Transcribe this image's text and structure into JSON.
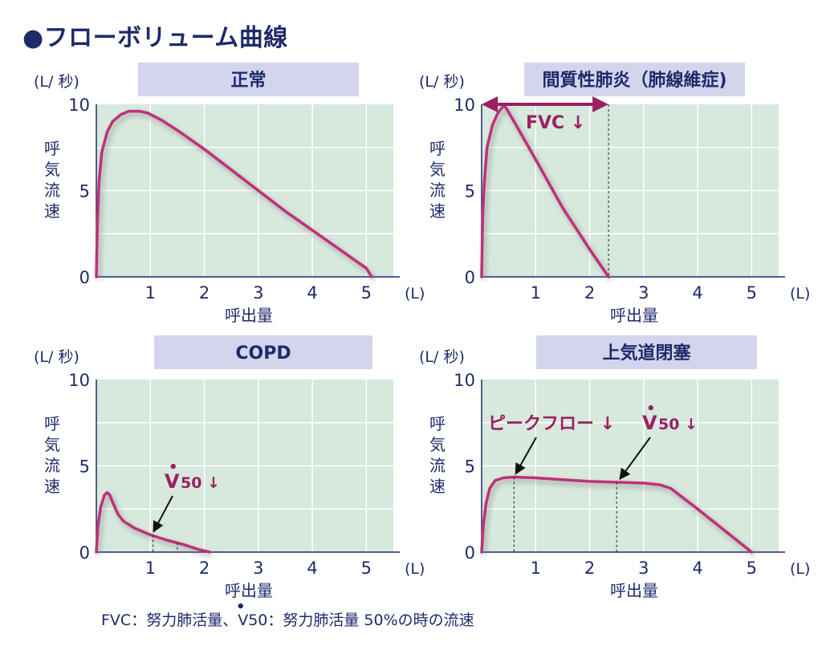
{
  "title": "●フローボリューム曲線",
  "footnote": "FVC：努力肺活量、V50：努力肺活量 50%の時の流速",
  "colors": {
    "plot_bg": "#d7e8dd",
    "grid": "#ffffff",
    "axis": "#1f2a6b",
    "curve": "#c0307a",
    "annotation": "#9a2160",
    "title_bg": "#d2d5ec",
    "text": "#1f2a6b"
  },
  "chart_data": [
    {
      "type": "line",
      "title": "正常",
      "ylabel": "呼気流速",
      "xlabel": "呼出量",
      "y_unit": "(L/ 秒)",
      "x_unit": "(L)",
      "xlim": [
        0,
        5.5
      ],
      "ylim": [
        0,
        10
      ],
      "x_ticks": [
        1,
        2,
        3,
        4,
        5
      ],
      "y_ticks": [
        0,
        5,
        10
      ],
      "grid": true,
      "series": [
        {
          "x": [
            0,
            0.02,
            0.05,
            0.1,
            0.2,
            0.3,
            0.45,
            0.6,
            0.8,
            0.95,
            1.2,
            1.5,
            2.0,
            2.5,
            3.0,
            3.5,
            4.0,
            4.5,
            5.0,
            5.1
          ],
          "y": [
            0,
            3.0,
            5.5,
            7.2,
            8.4,
            9.0,
            9.4,
            9.6,
            9.6,
            9.5,
            9.1,
            8.5,
            7.4,
            6.2,
            5.0,
            3.8,
            2.7,
            1.6,
            0.5,
            0
          ]
        }
      ],
      "annotations": []
    },
    {
      "type": "line",
      "title": "間質性肺炎（肺線維症)",
      "ylabel": "呼気流速",
      "xlabel": "呼出量",
      "y_unit": "(L/ 秒)",
      "x_unit": "(L)",
      "xlim": [
        0,
        5.5
      ],
      "ylim": [
        0,
        10
      ],
      "x_ticks": [
        1,
        2,
        3,
        4,
        5
      ],
      "y_ticks": [
        0,
        5,
        10
      ],
      "grid": true,
      "series": [
        {
          "x": [
            0,
            0.02,
            0.05,
            0.1,
            0.2,
            0.3,
            0.4,
            0.45,
            0.6,
            1.0,
            1.5,
            2.0,
            2.35
          ],
          "y": [
            0,
            3.5,
            5.5,
            7.5,
            8.8,
            9.5,
            9.9,
            9.8,
            9.0,
            6.8,
            4.0,
            1.6,
            0
          ]
        }
      ],
      "annotations": [
        {
          "text": "FVC ↓",
          "type": "double-arrow",
          "x_from": 0,
          "x_to": 2.35,
          "y": 10
        },
        {
          "type": "dashed-line",
          "x": 2.35
        }
      ]
    },
    {
      "type": "line",
      "title": "COPD",
      "ylabel": "呼気流速",
      "xlabel": "呼出量",
      "y_unit": "(L/ 秒)",
      "x_unit": "(L)",
      "xlim": [
        0,
        5.5
      ],
      "ylim": [
        0,
        10
      ],
      "x_ticks": [
        1,
        2,
        3,
        4,
        5
      ],
      "y_ticks": [
        0,
        5,
        10
      ],
      "grid": true,
      "series": [
        {
          "x": [
            0,
            0.03,
            0.08,
            0.15,
            0.2,
            0.25,
            0.3,
            0.4,
            0.5,
            0.7,
            1.0,
            1.3,
            1.6,
            1.9,
            2.1
          ],
          "y": [
            0,
            1.5,
            2.6,
            3.3,
            3.45,
            3.3,
            2.9,
            2.2,
            1.8,
            1.4,
            1.0,
            0.7,
            0.45,
            0.15,
            0
          ]
        }
      ],
      "annotations": [
        {
          "text": "V",
          "sub": "50 ↓",
          "type": "arrow",
          "x": 1.0,
          "y": 1.0
        },
        {
          "type": "dashed-line",
          "x": 1.05,
          "y_top": 1.0
        },
        {
          "type": "dashed-line",
          "x": 1.5,
          "y_top": 0.55
        }
      ]
    },
    {
      "type": "line",
      "title": "上気道閉塞",
      "ylabel": "呼気流速",
      "xlabel": "呼出量",
      "y_unit": "(L/ 秒)",
      "x_unit": "(L)",
      "xlim": [
        0,
        5.5
      ],
      "ylim": [
        0,
        10
      ],
      "x_ticks": [
        1,
        2,
        3,
        4,
        5
      ],
      "y_ticks": [
        0,
        5,
        10
      ],
      "grid": true,
      "series": [
        {
          "x": [
            0,
            0.03,
            0.08,
            0.15,
            0.25,
            0.4,
            0.6,
            1.0,
            1.5,
            2.0,
            2.5,
            3.0,
            3.3,
            3.5,
            4.0,
            4.5,
            5.0
          ],
          "y": [
            0,
            1.5,
            2.8,
            3.7,
            4.15,
            4.3,
            4.35,
            4.3,
            4.2,
            4.1,
            4.05,
            4.0,
            3.9,
            3.7,
            2.5,
            1.25,
            0
          ]
        }
      ],
      "annotations": [
        {
          "text": "ピークフロー ↓",
          "type": "arrow",
          "x": 0.6,
          "y": 4.35
        },
        {
          "text": "V",
          "sub": "50 ↓",
          "type": "arrow",
          "x": 2.5,
          "y": 4.05
        },
        {
          "type": "dashed-line",
          "x": 0.6,
          "y_top": 4.35
        },
        {
          "type": "dashed-line",
          "x": 2.5,
          "y_top": 4.05
        }
      ]
    }
  ]
}
